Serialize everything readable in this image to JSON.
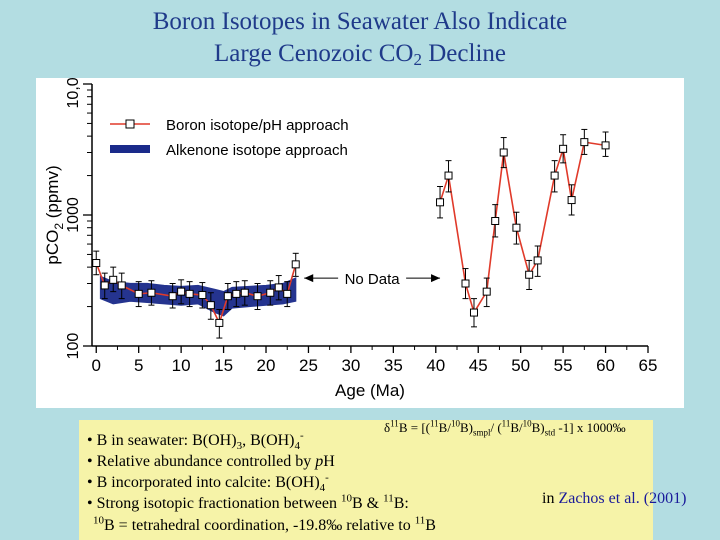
{
  "slide": {
    "title_line1": "Boron Isotopes in Seawater Also Indicate",
    "title_line2_prefix": "Large Cenozoic CO",
    "title_line2_sub": "2",
    "title_line2_suffix": " Decline"
  },
  "chart_data": {
    "type": "line",
    "xlabel": "Age (Ma)",
    "ylabel": "pCO2 (ppmv)",
    "ylabel_main": "pCO",
    "ylabel_sub": "2",
    "ylabel_units": " (ppmv)",
    "xlim": [
      -0.5,
      65
    ],
    "ylim": [
      100,
      10000
    ],
    "yscale": "log",
    "x_ticks": [
      0,
      5,
      10,
      15,
      20,
      25,
      30,
      35,
      40,
      45,
      50,
      55,
      60,
      65
    ],
    "x_tick_labels": [
      "0",
      "5",
      "10",
      "15",
      "20",
      "25",
      "30",
      "35",
      "40",
      "45",
      "50",
      "55",
      "60",
      "65"
    ],
    "y_ticks": [
      100,
      1000,
      10000
    ],
    "y_tick_labels": [
      "100",
      "1000",
      "10,000"
    ],
    "legend": {
      "placement": "top-left",
      "entries": [
        "Boron isotope/pH approach",
        "Alkenone isotope approach"
      ]
    },
    "annotation": {
      "text": "No Data",
      "x_from": 24.5,
      "x_to": 40.5,
      "y": 330
    },
    "series": [
      {
        "name": "Boron isotope/pH approach",
        "color": "#e03a2a",
        "marker": "open-square",
        "x": [
          0,
          1,
          2,
          3,
          5,
          6.5,
          9,
          10,
          11,
          12.5,
          13.5,
          14.5,
          15.5,
          16.5,
          17.5,
          19,
          20.5,
          21.5,
          22.5,
          23.5,
          40.5,
          41.5,
          43.5,
          44.5,
          46,
          47,
          48,
          49.5,
          51,
          52,
          54,
          55,
          56,
          57.5,
          60
        ],
        "y": [
          430,
          290,
          320,
          290,
          250,
          255,
          240,
          260,
          250,
          245,
          205,
          150,
          240,
          250,
          255,
          240,
          255,
          280,
          250,
          420,
          1250,
          2000,
          300,
          180,
          260,
          900,
          3000,
          800,
          350,
          450,
          2000,
          3200,
          1300,
          3600,
          3400
        ],
        "y_err_low": [
          350,
          230,
          260,
          230,
          200,
          205,
          195,
          210,
          200,
          195,
          160,
          115,
          190,
          200,
          205,
          190,
          205,
          225,
          200,
          340,
          950,
          1500,
          230,
          140,
          200,
          680,
          2300,
          600,
          270,
          340,
          1500,
          2500,
          1000,
          2900,
          2800
        ],
        "y_err_high": [
          530,
          360,
          400,
          360,
          310,
          315,
          300,
          320,
          310,
          305,
          255,
          190,
          300,
          310,
          315,
          300,
          315,
          345,
          310,
          510,
          1650,
          2600,
          390,
          230,
          330,
          1200,
          3900,
          1050,
          450,
          580,
          2600,
          4100,
          1700,
          4500,
          4300
        ]
      },
      {
        "name": "Alkenone isotope approach",
        "color": "#1a2a8a",
        "x": [
          0.5,
          2,
          4,
          6,
          8,
          10,
          12,
          14,
          15,
          16,
          18,
          20,
          22,
          23.5
        ],
        "y_low": [
          230,
          210,
          220,
          215,
          210,
          205,
          210,
          180,
          170,
          195,
          200,
          205,
          210,
          220
        ],
        "y_high": [
          340,
          310,
          300,
          300,
          290,
          285,
          290,
          270,
          260,
          280,
          285,
          290,
          300,
          330
        ]
      }
    ]
  },
  "notes": {
    "formula": "δ11B = [(11B/10B)smpl/ (11B/10B)std -1] x 1000‰",
    "bullet1_a": "• B in seawater:  B(OH)",
    "bullet1_sub": "3",
    "bullet1_b": ", B(OH)",
    "bullet1_sub2": "4",
    "bullet1_sup": "-",
    "bullet2_a": "• Relative abundance controlled by ",
    "bullet2_p": "p",
    "bullet2_b": "H",
    "bullet3_a": "• B incorporated into calcite:  B(OH)",
    "bullet3_sub": "4",
    "bullet3_sup": "-",
    "bullet4_a": "• Strong isotopic fractionation between ",
    "bullet4_sup1": "10",
    "bullet4_b": "B & ",
    "bullet4_sup2": "11",
    "bullet4_c": "B:",
    "bullet5_sup1": "10",
    "bullet5_a": "B = tetrahedral coordination, -19.8‰ relative to ",
    "bullet5_sup2": "11",
    "bullet5_b": "B",
    "citation_prefix": "in ",
    "citation_author": "Zachos et al. (2001)"
  }
}
